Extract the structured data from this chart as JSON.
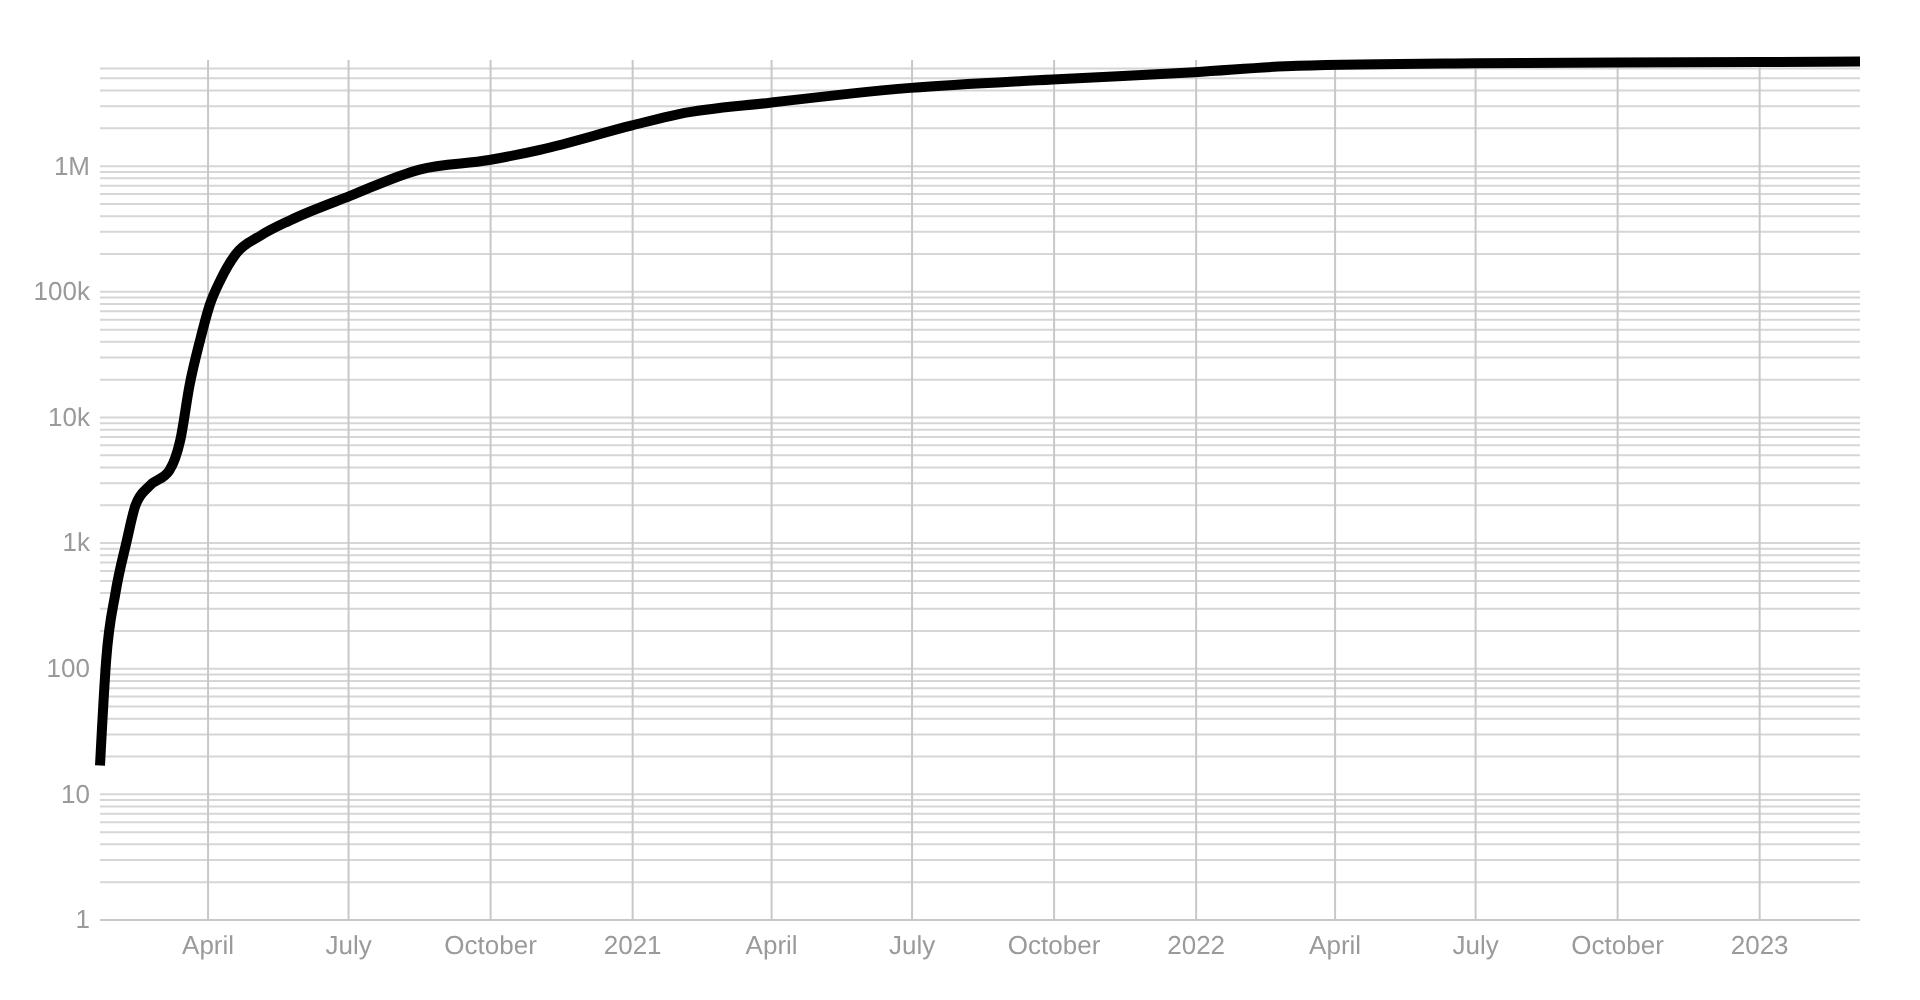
{
  "chart_data": {
    "type": "line",
    "log": "y",
    "grid": true,
    "x": [
      "2020-01-22",
      "2020-01-26",
      "2020-02-01",
      "2020-02-08",
      "2020-02-14",
      "2020-02-23",
      "2020-03-07",
      "2020-03-14",
      "2020-03-20",
      "2020-03-27",
      "2020-04-02",
      "2020-04-09",
      "2020-04-19",
      "2020-05-05",
      "2020-05-24",
      "2020-07-02",
      "2020-08-16",
      "2020-09-30",
      "2020-11-02",
      "2020-12-31",
      "2021-01-31",
      "2021-03-31",
      "2021-06-30",
      "2021-09-30",
      "2021-12-31",
      "2022-03-08",
      "2022-07-01",
      "2022-10-01",
      "2023-01-01",
      "2023-03-07"
    ],
    "series": [
      {
        "color": "#000000",
        "values": [
          17,
          117,
          400,
          1000,
          2000,
          2850,
          3800,
          6600,
          18000,
          42000,
          78000,
          124000,
          200000,
          280000,
          370000,
          580000,
          940000,
          1120000,
          1350000,
          2100000,
          2600000,
          3200000,
          4200000,
          4900000,
          5600000,
          6300000,
          6600000,
          6700000,
          6750000,
          6800000
        ]
      }
    ],
    "xlim": [
      "2020-01-22",
      "2023-03-07"
    ],
    "xticks": [
      {
        "value": "2020-04-01",
        "label": "April"
      },
      {
        "value": "2020-07-01",
        "label": "July"
      },
      {
        "value": "2020-10-01",
        "label": "October"
      },
      {
        "value": "2021-01-01",
        "label": "2021"
      },
      {
        "value": "2021-04-01",
        "label": "April"
      },
      {
        "value": "2021-07-01",
        "label": "July"
      },
      {
        "value": "2021-10-01",
        "label": "October"
      },
      {
        "value": "2022-01-01",
        "label": "2022"
      },
      {
        "value": "2022-04-01",
        "label": "April"
      },
      {
        "value": "2022-07-01",
        "label": "July"
      },
      {
        "value": "2022-10-01",
        "label": "October"
      },
      {
        "value": "2023-01-01",
        "label": "2023"
      }
    ],
    "ylim": [
      1,
      7000000
    ],
    "yticks": [
      1,
      {
        "value": 2,
        "label": null
      },
      {
        "value": 3,
        "label": null
      },
      {
        "value": 4,
        "label": null
      },
      {
        "value": 5,
        "label": null
      },
      {
        "value": 6,
        "label": null
      },
      {
        "value": 7,
        "label": null
      },
      {
        "value": 8,
        "label": null
      },
      {
        "value": 9,
        "label": null
      },
      10,
      {
        "value": 20,
        "label": null
      },
      {
        "value": 30,
        "label": null
      },
      {
        "value": 40,
        "label": null
      },
      {
        "value": 50,
        "label": null
      },
      {
        "value": 60,
        "label": null
      },
      {
        "value": 70,
        "label": null
      },
      {
        "value": 80,
        "label": null
      },
      {
        "value": 90,
        "label": null
      },
      100,
      {
        "value": 200,
        "label": null
      },
      {
        "value": 300,
        "label": null
      },
      {
        "value": 400,
        "label": null
      },
      {
        "value": 500,
        "label": null
      },
      {
        "value": 600,
        "label": null
      },
      {
        "value": 700,
        "label": null
      },
      {
        "value": 800,
        "label": null
      },
      {
        "value": 900,
        "label": null
      },
      {
        "value": 1000,
        "label": "1k"
      },
      {
        "value": 2000,
        "label": null
      },
      {
        "value": 3000,
        "label": null
      },
      {
        "value": 4000,
        "label": null
      },
      {
        "value": 5000,
        "label": null
      },
      {
        "value": 6000,
        "label": null
      },
      {
        "value": 7000,
        "label": null
      },
      {
        "value": 8000,
        "label": null
      },
      {
        "value": 9000,
        "label": null
      },
      {
        "value": 10000,
        "label": "10k"
      },
      {
        "value": 20000,
        "label": null
      },
      {
        "value": 30000,
        "label": null
      },
      {
        "value": 40000,
        "label": null
      },
      {
        "value": 50000,
        "label": null
      },
      {
        "value": 60000,
        "label": null
      },
      {
        "value": 70000,
        "label": null
      },
      {
        "value": 80000,
        "label": null
      },
      {
        "value": 90000,
        "label": null
      },
      {
        "value": 100000,
        "label": "100k"
      },
      {
        "value": 200000,
        "label": null
      },
      {
        "value": 300000,
        "label": null
      },
      {
        "value": 400000,
        "label": null
      },
      {
        "value": 500000,
        "label": null
      },
      {
        "value": 600000,
        "label": null
      },
      {
        "value": 700000,
        "label": null
      },
      {
        "value": 800000,
        "label": null
      },
      {
        "value": 900000,
        "label": null
      },
      {
        "value": 1000000,
        "label": "1M"
      },
      {
        "value": 2000000,
        "label": null
      },
      {
        "value": 3000000,
        "label": null
      },
      {
        "value": 4000000,
        "label": null
      },
      {
        "value": 5000000,
        "label": null
      },
      {
        "value": 6000000,
        "label": null
      }
    ]
  }
}
